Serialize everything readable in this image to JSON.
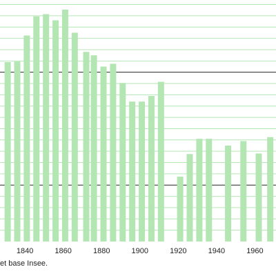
{
  "chart_data": {
    "type": "bar",
    "x": [
      1831,
      1836,
      1841,
      1846,
      1851,
      1856,
      1861,
      1866,
      1872,
      1876,
      1881,
      1886,
      1891,
      1896,
      1901,
      1906,
      1911,
      1921,
      1926,
      1931,
      1936,
      1946,
      1954,
      1962,
      1968
    ],
    "values": [
      318,
      319,
      365,
      399,
      403,
      392,
      411,
      370,
      336,
      330,
      310,
      315,
      281,
      248,
      248,
      258,
      283,
      115,
      155,
      182,
      182,
      170,
      178,
      156,
      185
    ],
    "xlim": [
      1827,
      1971
    ],
    "ylim": [
      0,
      428
    ],
    "x_tick_labels": [
      "1840",
      "1860",
      "1880",
      "1900",
      "1920",
      "1940",
      "1960"
    ],
    "x_tick_values": [
      1840,
      1860,
      1880,
      1900,
      1920,
      1940,
      1960
    ],
    "gridlines_major": [
      100,
      300
    ],
    "gridlines_minor": [
      20,
      40,
      60,
      80,
      120,
      140,
      160,
      180,
      200,
      220,
      240,
      260,
      280,
      320,
      340,
      360,
      380,
      400,
      420
    ],
    "bar_color": "#b4e6b4",
    "major_grid_color": "#222222",
    "minor_grid_color": "#b4e6b4",
    "grid": true,
    "source_note": "et base Insee."
  }
}
